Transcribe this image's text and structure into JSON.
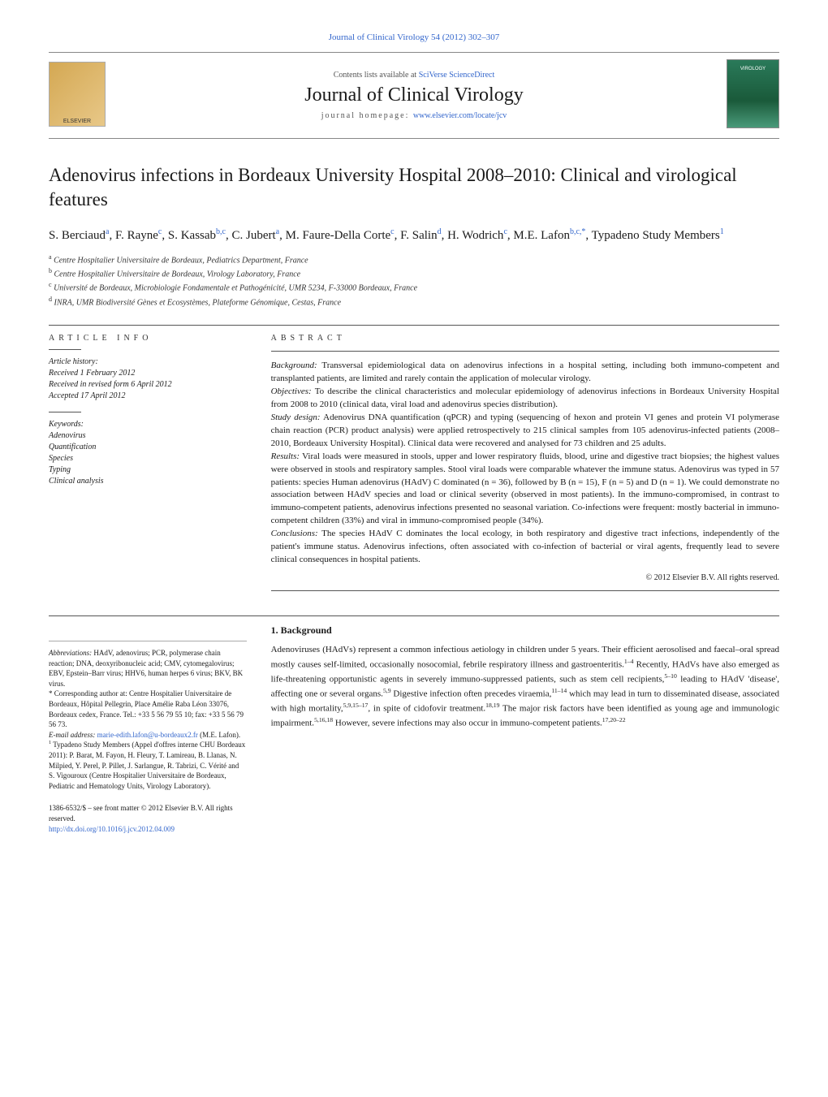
{
  "header": {
    "citation": "Journal of Clinical Virology 54 (2012) 302–307",
    "contents_available": "Contents lists available at ",
    "contents_link": "SciVerse ScienceDirect",
    "journal_name": "Journal of Clinical Virology",
    "homepage_label": "journal homepage: ",
    "homepage_url": "www.elsevier.com/locate/jcv"
  },
  "article": {
    "title": "Adenovirus infections in Bordeaux University Hospital 2008–2010: Clinical and virological features",
    "authors_html": "S. Berciaud<sup>a</sup>, F. Rayne<sup>c</sup>, S. Kassab<sup>b,c</sup>, C. Jubert<sup>a</sup>, M. Faure-Della Corte<sup>c</sup>, F. Salin<sup>d</sup>, H. Wodrich<sup>c</sup>, M.E. Lafon<sup>b,c,*</sup>, Typadeno Study Members<sup>1</sup>",
    "affiliations": [
      {
        "sup": "a",
        "text": "Centre Hospitalier Universitaire de Bordeaux, Pediatrics Department, France"
      },
      {
        "sup": "b",
        "text": "Centre Hospitalier Universitaire de Bordeaux, Virology Laboratory, France"
      },
      {
        "sup": "c",
        "text": "Université de Bordeaux, Microbiologie Fondamentale et Pathogénicité, UMR 5234, F-33000 Bordeaux, France"
      },
      {
        "sup": "d",
        "text": "INRA, UMR Biodiversité Gènes et Ecosystèmes, Plateforme Génomique, Cestas, France"
      }
    ]
  },
  "info": {
    "section_head": "article info",
    "history_label": "Article history:",
    "received": "Received 1 February 2012",
    "revised": "Received in revised form 6 April 2012",
    "accepted": "Accepted 17 April 2012",
    "keywords_label": "Keywords:",
    "keywords": [
      "Adenovirus",
      "Quantification",
      "Species",
      "Typing",
      "Clinical analysis"
    ]
  },
  "abstract": {
    "section_head": "abstract",
    "paragraphs": [
      {
        "label": "Background:",
        "text": " Transversal epidemiological data on adenovirus infections in a hospital setting, including both immuno-competent and transplanted patients, are limited and rarely contain the application of molecular virology."
      },
      {
        "label": "Objectives:",
        "text": " To describe the clinical characteristics and molecular epidemiology of adenovirus infections in Bordeaux University Hospital from 2008 to 2010 (clinical data, viral load and adenovirus species distribution)."
      },
      {
        "label": "Study design:",
        "text": " Adenovirus DNA quantification (qPCR) and typing (sequencing of hexon and protein VI genes and protein VI polymerase chain reaction (PCR) product analysis) were applied retrospectively to 215 clinical samples from 105 adenovirus-infected patients (2008–2010, Bordeaux University Hospital). Clinical data were recovered and analysed for 73 children and 25 adults."
      },
      {
        "label": "Results:",
        "text": " Viral loads were measured in stools, upper and lower respiratory fluids, blood, urine and digestive tract biopsies; the highest values were observed in stools and respiratory samples. Stool viral loads were comparable whatever the immune status. Adenovirus was typed in 57 patients: species Human adenovirus (HAdV) C dominated (n = 36), followed by B (n = 15), F (n = 5) and D (n = 1). We could demonstrate no association between HAdV species and load or clinical severity (observed in most patients). In the immuno-compromised, in contrast to immuno-competent patients, adenovirus infections presented no seasonal variation. Co-infections were frequent: mostly bacterial in immuno-competent children (33%) and viral in immuno-compromised people (34%)."
      },
      {
        "label": "Conclusions:",
        "text": " The species HAdV C dominates the local ecology, in both respiratory and digestive tract infections, independently of the patient's immune status. Adenovirus infections, often associated with co-infection of bacterial or viral agents, frequently lead to severe clinical consequences in hospital patients."
      }
    ],
    "copyright": "© 2012 Elsevier B.V. All rights reserved."
  },
  "body": {
    "heading": "1. Background",
    "paragraph_html": "Adenoviruses (HAdVs) represent a common infectious aetiology in children under 5 years. Their efficient aerosolised and faecal–oral spread mostly causes self-limited, occasionally nosocomial, febrile respiratory illness and gastroenteritis.<sup>1–4</sup> Recently, HAdVs have also emerged as life-threatening opportunistic agents in severely immuno-suppressed patients, such as stem cell recipients,<sup>5–10</sup> leading to HAdV 'disease', affecting one or several organs.<sup>5,9</sup> Digestive infection often precedes viraemia,<sup>11–14</sup> which may lead in turn to disseminated disease, associated with high mortality,<sup>5,9,15–17</sup>, in spite of cidofovir treatment.<sup>18,19</sup> The major risk factors have been identified as young age and immunologic impairment.<sup>5,16,18</sup> However, severe infections may also occur in immuno-competent patients.<sup>17,20–22</sup>"
  },
  "footnotes": {
    "abbreviations_label": "Abbreviations:",
    "abbreviations": " HAdV, adenovirus; PCR, polymerase chain reaction; DNA, deoxyribonucleic acid; CMV, cytomegalovirus; EBV, Epstein–Barr virus; HHV6, human herpes 6 virus; BKV, BK virus.",
    "corresponding_label": "* Corresponding author at:",
    "corresponding": " Centre Hospitalier Universitaire de Bordeaux, Hôpital Pellegrin, Place Amélie Raba Léon 33076, Bordeaux cedex, France. Tel.: +33 5 56 79 55 10; fax: +33 5 56 79 56 73.",
    "email_label": "E-mail address: ",
    "email": "marie-edith.lafon@u-bordeaux2.fr",
    "email_suffix": " (M.E. Lafon).",
    "members_label": "1",
    "members": " Typadeno Study Members (Appel d'offres interne CHU Bordeaux 2011): P. Barat, M. Fayon, H. Fleury, T. Lamireau, B. Llanas, N. Milpied, Y. Perel, P. Pillet, J. Sarlangue, R. Tabrizi, C. Vérité and S. Vigouroux (Centre Hospitalier Universitaire de Bordeaux, Pediatric and Hematology Units, Virology Laboratory)."
  },
  "footer": {
    "issn": "1386-6532/$ – see front matter © 2012 Elsevier B.V. All rights reserved.",
    "doi": "http://dx.doi.org/10.1016/j.jcv.2012.04.009"
  },
  "colors": {
    "link": "#3366cc",
    "text": "#1a1a1a",
    "rule": "#555555"
  }
}
